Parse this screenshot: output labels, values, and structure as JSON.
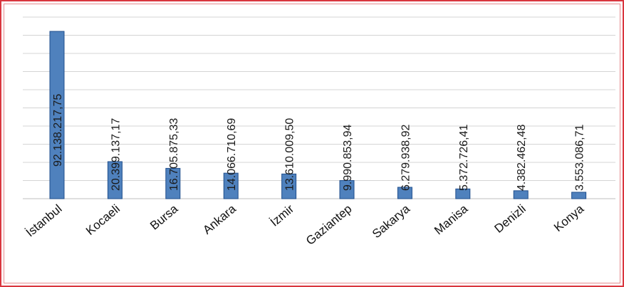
{
  "chart_data": {
    "type": "bar",
    "categories": [
      "İstanbul",
      "Kocaeli",
      "Bursa",
      "Ankara",
      "İzmir",
      "Gaziantep",
      "Sakarya",
      "Manisa",
      "Denizli",
      "Konya"
    ],
    "values": [
      92138217.75,
      20399137.17,
      16705875.33,
      14066710.69,
      13610009.5,
      9990853.94,
      6279938.92,
      5372726.41,
      4382462.48,
      3553086.71
    ],
    "data_labels": [
      "92.138.217,75",
      "20.399.137,17",
      "16.705.875,33",
      "14.066.710,69",
      "13.610.009,50",
      "9.990.853,94",
      "6.279.938,92",
      "5.372.726,41",
      "4.382.462,48",
      "3.553.086,71"
    ],
    "title": "",
    "xlabel": "",
    "ylabel": "",
    "ylim": [
      0,
      100000000
    ],
    "grid": true,
    "legend": "none",
    "colors": {
      "bar": "#4f81bd",
      "bar_edge": "#1f4e8c",
      "grid": "#d4d4d4",
      "border": "#d9363e"
    }
  }
}
